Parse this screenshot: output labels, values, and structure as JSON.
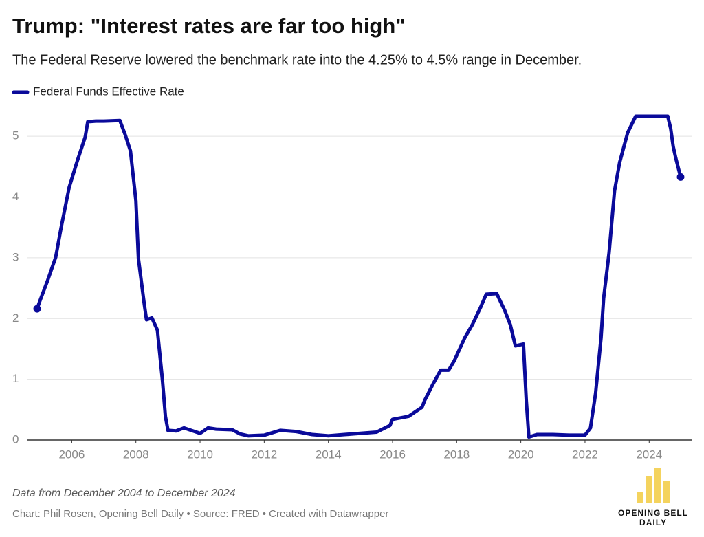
{
  "chart_data": {
    "type": "line",
    "title": "Trump: \"Interest rates are far too high\"",
    "subtitle": "The Federal Reserve lowered the benchmark rate into the 4.25% to 4.5% range in December.",
    "note": "Data from December 2004 to December 2024",
    "credit": "Chart: Phil Rosen, Opening Bell Daily • Source: FRED • Created with Datawrapper",
    "x": [
      2004.92,
      2005.0,
      2005.25,
      2005.5,
      2005.67,
      2005.92,
      2006.17,
      2006.42,
      2006.5,
      2006.75,
      2007.0,
      2007.5,
      2007.67,
      2007.83,
      2008.0,
      2008.08,
      2008.25,
      2008.33,
      2008.5,
      2008.67,
      2008.83,
      2008.92,
      2009.0,
      2009.25,
      2009.5,
      2010.0,
      2010.25,
      2010.5,
      2011.0,
      2011.25,
      2011.5,
      2012.0,
      2012.5,
      2013.0,
      2013.5,
      2014.0,
      2014.5,
      2015.0,
      2015.5,
      2015.92,
      2016.0,
      2016.5,
      2016.92,
      2017.0,
      2017.25,
      2017.5,
      2017.75,
      2017.92,
      2018.25,
      2018.5,
      2018.75,
      2018.92,
      2019.25,
      2019.5,
      2019.67,
      2019.83,
      2020.08,
      2020.17,
      2020.25,
      2020.5,
      2021.0,
      2021.5,
      2022.0,
      2022.17,
      2022.33,
      2022.5,
      2022.58,
      2022.75,
      2022.92,
      2023.08,
      2023.33,
      2023.58,
      2024.58,
      2024.67,
      2024.75,
      2024.83,
      2024.98
    ],
    "series": [
      {
        "name": "Federal Funds Effective Rate",
        "color": "#0a0a9a",
        "values": [
          2.16,
          2.28,
          2.63,
          3.01,
          3.5,
          4.16,
          4.59,
          4.99,
          5.24,
          5.25,
          5.25,
          5.26,
          5.02,
          4.76,
          3.94,
          2.98,
          2.28,
          1.98,
          2.01,
          1.81,
          0.97,
          0.39,
          0.16,
          0.15,
          0.2,
          0.11,
          0.2,
          0.18,
          0.17,
          0.1,
          0.07,
          0.08,
          0.16,
          0.14,
          0.09,
          0.07,
          0.09,
          0.11,
          0.13,
          0.24,
          0.34,
          0.39,
          0.54,
          0.65,
          0.91,
          1.15,
          1.15,
          1.3,
          1.68,
          1.91,
          2.19,
          2.4,
          2.41,
          2.13,
          1.9,
          1.55,
          1.58,
          0.65,
          0.05,
          0.09,
          0.09,
          0.08,
          0.08,
          0.2,
          0.77,
          1.68,
          2.33,
          3.08,
          4.1,
          4.57,
          5.06,
          5.33,
          5.33,
          5.13,
          4.83,
          4.64,
          4.33
        ]
      }
    ],
    "xlim": [
      2004.92,
      2024.98
    ],
    "xticks": [
      2006,
      2008,
      2010,
      2012,
      2014,
      2016,
      2018,
      2020,
      2022,
      2024
    ],
    "ylim": [
      0,
      5.5
    ],
    "yticks": [
      0,
      1,
      2,
      3,
      4,
      5
    ],
    "grid": true
  },
  "logo": [
    "OPENING BELL",
    "DAILY"
  ]
}
